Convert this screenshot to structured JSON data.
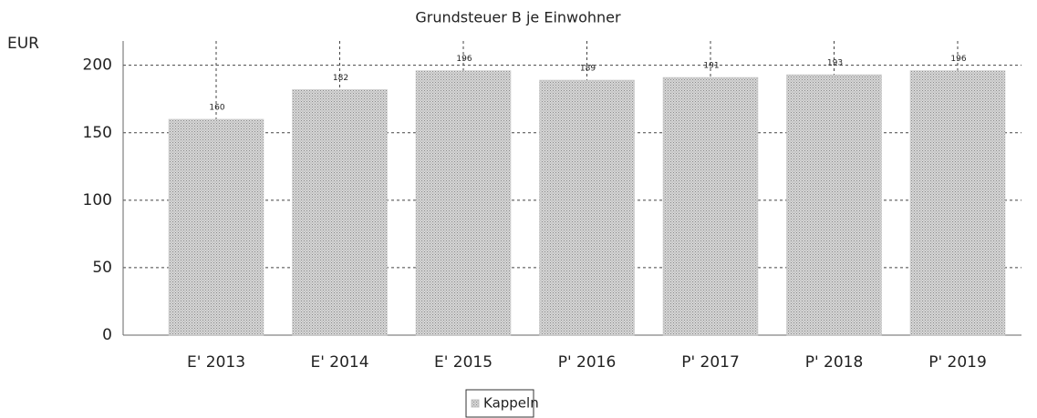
{
  "chart_data": {
    "type": "bar",
    "title": "Grundsteuer B je Einwohner",
    "y_label": "EUR",
    "categories": [
      "E' 2013",
      "E' 2014",
      "E' 2015",
      "P' 2016",
      "P' 2017",
      "P' 2018",
      "P' 2019"
    ],
    "series": [
      {
        "name": "Kappeln",
        "color": "#c4c4c4",
        "values": [
          160,
          182,
          196,
          189,
          191,
          193,
          196
        ]
      }
    ],
    "ylim": [
      0,
      218
    ],
    "yticks": [
      0,
      50,
      100,
      150,
      200
    ],
    "grid": true,
    "legend": "bottom"
  }
}
